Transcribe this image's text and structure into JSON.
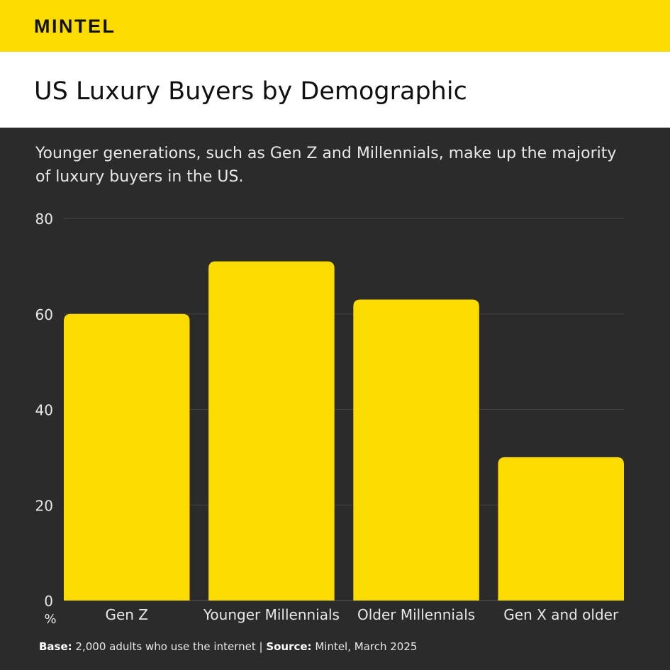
{
  "brand": {
    "logo": "MINTEL",
    "accent": "#fcdb00"
  },
  "header": {
    "title": "US Luxury Buyers by Demographic"
  },
  "subtitle": "Younger generations, such as Gen Z and Millennials, make up the majority of luxury buyers in the US.",
  "footer": {
    "base_label": "Base:",
    "base_text": " 2,000 adults who use the internet | ",
    "source_label": "Source:",
    "source_text": " Mintel, March 2025"
  },
  "chart_data": {
    "type": "bar",
    "title": "US Luxury Buyers by Demographic",
    "categories": [
      "Gen Z",
      "Younger Millennials",
      "Older Millennials",
      "Gen X and older"
    ],
    "values": [
      60,
      71,
      63,
      30
    ],
    "xlabel": "",
    "ylabel": "%",
    "ylim": [
      0,
      80
    ],
    "yticks": [
      0,
      20,
      40,
      60,
      80
    ],
    "grid": true,
    "bar_color": "#fcdb00"
  }
}
